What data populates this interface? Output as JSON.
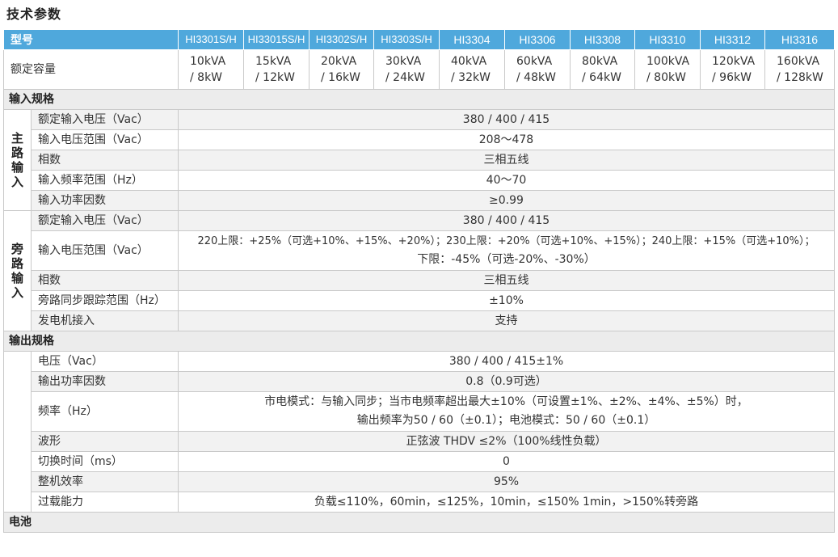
{
  "title": "技术参数",
  "header": {
    "label": "型号",
    "models": [
      "HI3301S/H",
      "HI33015S/H",
      "HI3302S/H",
      "HI3303S/H",
      "HI3304",
      "HI3306",
      "HI3308",
      "HI3310",
      "HI3312",
      "HI3316"
    ]
  },
  "capacity": {
    "label": "额定容量",
    "values": [
      [
        "10kVA",
        "/ 8kW"
      ],
      [
        "15kVA",
        "/ 12kW"
      ],
      [
        "20kVA",
        "/ 16kW"
      ],
      [
        "30kVA",
        "/ 24kW"
      ],
      [
        "40kVA",
        "/ 32kW"
      ],
      [
        "60kVA",
        "/ 48kW"
      ],
      [
        "80kVA",
        "/ 64kW"
      ],
      [
        "100kVA",
        "/ 80kW"
      ],
      [
        "120kVA",
        "/ 96kW"
      ],
      [
        "160kVA",
        "/ 128kW"
      ]
    ]
  },
  "input": {
    "section": "输入规格",
    "main": {
      "group": "主路输入",
      "rows": [
        {
          "label": "额定输入电压（Vac）",
          "value": "380 / 400 / 415"
        },
        {
          "label": "输入电压范围（Vac）",
          "value": "208～478"
        },
        {
          "label": "相数",
          "value": "三相五线"
        },
        {
          "label": "输入频率范围（Hz）",
          "value": "40～70"
        },
        {
          "label": "输入功率因数",
          "value": "≥0.99"
        }
      ]
    },
    "bypass": {
      "group": "旁路输入",
      "rows": [
        {
          "label": "额定输入电压（Vac）",
          "value": "380 / 400 / 415"
        },
        {
          "label": "输入电压范围（Vac）",
          "line1": "220上限：+25%（可选+10%、+15%、+20%）；230上限：+20%（可选+10%、+15%）；240上限：+15%（可选+10%）；",
          "line2": "下限：-45%（可选-20%、-30%）"
        },
        {
          "label": "相数",
          "value": "三相五线"
        },
        {
          "label": "旁路同步跟踪范围（Hz）",
          "value": "±10%"
        },
        {
          "label": "发电机接入",
          "value": "支持"
        }
      ]
    }
  },
  "output": {
    "section": "输出规格",
    "rows": [
      {
        "label": "电压（Vac）",
        "value": "380 / 400 / 415±1%"
      },
      {
        "label": "输出功率因数",
        "value": "0.8（0.9可选）"
      },
      {
        "label": "频率（Hz）",
        "line1": "市电模式：与输入同步；当市电频率超出最大±10%（可设置±1%、±2%、±4%、±5%）时，",
        "line2": "输出频率为50 / 60（±0.1）；电池模式：50 / 60（±0.1）"
      },
      {
        "label": "波形",
        "value": "正弦波 THDV ≤2%（100%线性负载）"
      },
      {
        "label": "切换时间（ms）",
        "value": "0"
      },
      {
        "label": "整机效率",
        "value": "95%"
      },
      {
        "label": "过载能力",
        "value": "负载≤110%，60min，≤125%，10min，≤150% 1min，>150%转旁路"
      }
    ]
  },
  "battery": {
    "section": "电池"
  },
  "colors": {
    "header_bg": "#4fa8dc",
    "section_bg": "#ececec",
    "row_shade": "#f2f2f2"
  }
}
